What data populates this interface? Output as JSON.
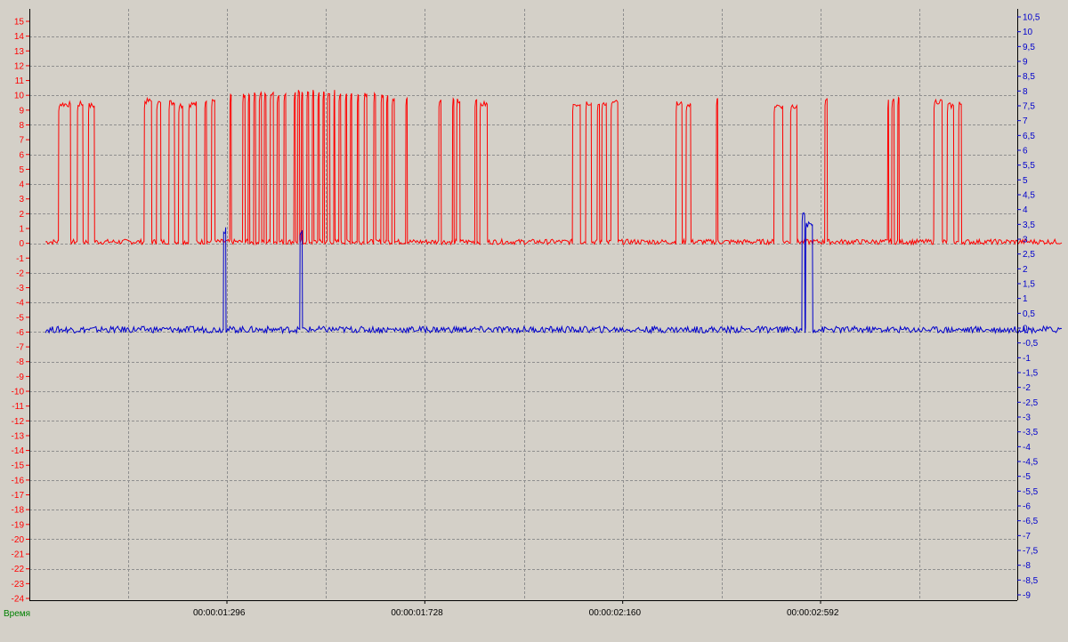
{
  "colors": {
    "background": "#d4d0c8",
    "grid": "#8f8f8f",
    "series_red": "#ff0000",
    "series_blue": "#0000cc",
    "axis": "#000000",
    "xlabel": "#008000"
  },
  "chart_data": {
    "type": "line",
    "grid": true,
    "xlabel": "Время",
    "xlim": [
      0.9,
      3.12
    ],
    "x_ticks": [
      {
        "value": 1.296,
        "label": "00:00:01:296"
      },
      {
        "value": 1.728,
        "label": "00:00:01:728"
      },
      {
        "value": 2.16,
        "label": "00:00:02:160"
      },
      {
        "value": 2.592,
        "label": "00:00:02:592"
      }
    ],
    "y_left": {
      "range": [
        -24,
        15.5
      ],
      "ticks": [
        "15",
        "14",
        "13",
        "12",
        "11",
        "10",
        "9",
        "8",
        "7",
        "6",
        "5",
        "4",
        "3",
        "2",
        "1",
        "0",
        "-1",
        "-2",
        "-3",
        "-4",
        "-5",
        "-6",
        "-7",
        "-8",
        "-9",
        "-10",
        "-11",
        "-12",
        "-13",
        "-14",
        "-15",
        "-16",
        "-17",
        "-18",
        "-19",
        "-20",
        "-21",
        "-22",
        "-23",
        "-24"
      ]
    },
    "y_right": {
      "range": [
        -9.1,
        10.8
      ],
      "ticks": [
        "10,5",
        "10",
        "9,5",
        "9",
        "8,5",
        "8",
        "7,5",
        "7",
        "6,5",
        "6",
        "5,5",
        "5",
        "4,5",
        "4",
        "3,5",
        "3",
        "2,5",
        "2",
        "1,5",
        "1",
        "0,5",
        "0",
        "-0,5",
        "-1",
        "-1,5",
        "-2",
        "-2,5",
        "-3",
        "-3,5",
        "-4",
        "-4,5",
        "-5",
        "-5,5",
        "-6",
        "-6,5",
        "-7",
        "-7,5",
        "-8",
        "-8,5",
        "-9"
      ]
    },
    "series": [
      {
        "axis": "left",
        "color": "#ff0000",
        "baseline": 0.1,
        "pulses": [
          [
            0.928,
            0.955,
            9.4
          ],
          [
            0.969,
            0.982,
            9.4
          ],
          [
            0.993,
            1.007,
            9.3
          ],
          [
            1.115,
            1.132,
            9.6
          ],
          [
            1.142,
            1.152,
            9.5
          ],
          [
            1.169,
            1.182,
            9.5
          ],
          [
            1.19,
            1.2,
            9.3
          ],
          [
            1.212,
            1.23,
            9.4
          ],
          [
            1.247,
            1.252,
            9.6
          ],
          [
            1.262,
            1.27,
            9.7
          ],
          [
            1.302,
            1.306,
            10.0
          ],
          [
            1.33,
            1.336,
            10.0
          ],
          [
            1.342,
            1.346,
            10.0
          ],
          [
            1.354,
            1.359,
            10.0
          ],
          [
            1.366,
            1.372,
            10.1
          ],
          [
            1.377,
            1.382,
            10.0
          ],
          [
            1.39,
            1.398,
            10.2
          ],
          [
            1.405,
            1.41,
            10.0
          ],
          [
            1.42,
            1.425,
            10.1
          ],
          [
            1.442,
            1.446,
            10.2
          ],
          [
            1.45,
            1.455,
            10.2
          ],
          [
            1.458,
            1.462,
            10.1
          ],
          [
            1.47,
            1.475,
            10.2
          ],
          [
            1.482,
            1.486,
            10.2
          ],
          [
            1.494,
            1.498,
            10.2
          ],
          [
            1.505,
            1.509,
            10.2
          ],
          [
            1.515,
            1.521,
            10.1
          ],
          [
            1.529,
            1.532,
            10.2
          ],
          [
            1.54,
            1.545,
            10.1
          ],
          [
            1.554,
            1.558,
            10.1
          ],
          [
            1.565,
            1.569,
            10.1
          ],
          [
            1.58,
            1.584,
            10.0
          ],
          [
            1.595,
            1.602,
            10.1
          ],
          [
            1.616,
            1.621,
            10.0
          ],
          [
            1.632,
            1.638,
            10.0
          ],
          [
            1.644,
            1.648,
            10.0
          ],
          [
            1.656,
            1.662,
            9.8
          ],
          [
            1.686,
            1.69,
            9.8
          ],
          [
            1.758,
            1.764,
            9.7
          ],
          [
            1.788,
            1.792,
            9.7
          ],
          [
            1.797,
            1.805,
            9.6
          ],
          [
            1.837,
            1.842,
            9.7
          ],
          [
            1.848,
            1.865,
            9.4
          ],
          [
            2.05,
            2.068,
            9.4
          ],
          [
            2.079,
            2.092,
            9.5
          ],
          [
            2.104,
            2.11,
            9.4
          ],
          [
            2.114,
            2.125,
            9.5
          ],
          [
            2.134,
            2.15,
            9.5
          ],
          [
            2.276,
            2.29,
            9.4
          ],
          [
            2.298,
            2.309,
            9.4
          ],
          [
            2.364,
            2.368,
            9.8
          ],
          [
            2.49,
            2.51,
            9.3
          ],
          [
            2.526,
            2.541,
            9.3
          ],
          [
            2.601,
            2.607,
            9.8
          ],
          [
            2.738,
            2.741,
            9.6
          ],
          [
            2.747,
            2.753,
            9.6
          ],
          [
            2.76,
            2.764,
            9.8
          ],
          [
            2.839,
            2.858,
            9.6
          ],
          [
            2.868,
            2.883,
            9.3
          ],
          [
            2.893,
            2.9,
            9.4
          ]
        ]
      },
      {
        "axis": "right",
        "color": "#0000cc",
        "baseline": -0.05,
        "pulses": [
          [
            1.288,
            1.294,
            3.4
          ],
          [
            1.455,
            1.461,
            3.3
          ],
          [
            2.551,
            2.558,
            3.8
          ],
          [
            2.559,
            2.575,
            3.5
          ]
        ]
      }
    ]
  }
}
